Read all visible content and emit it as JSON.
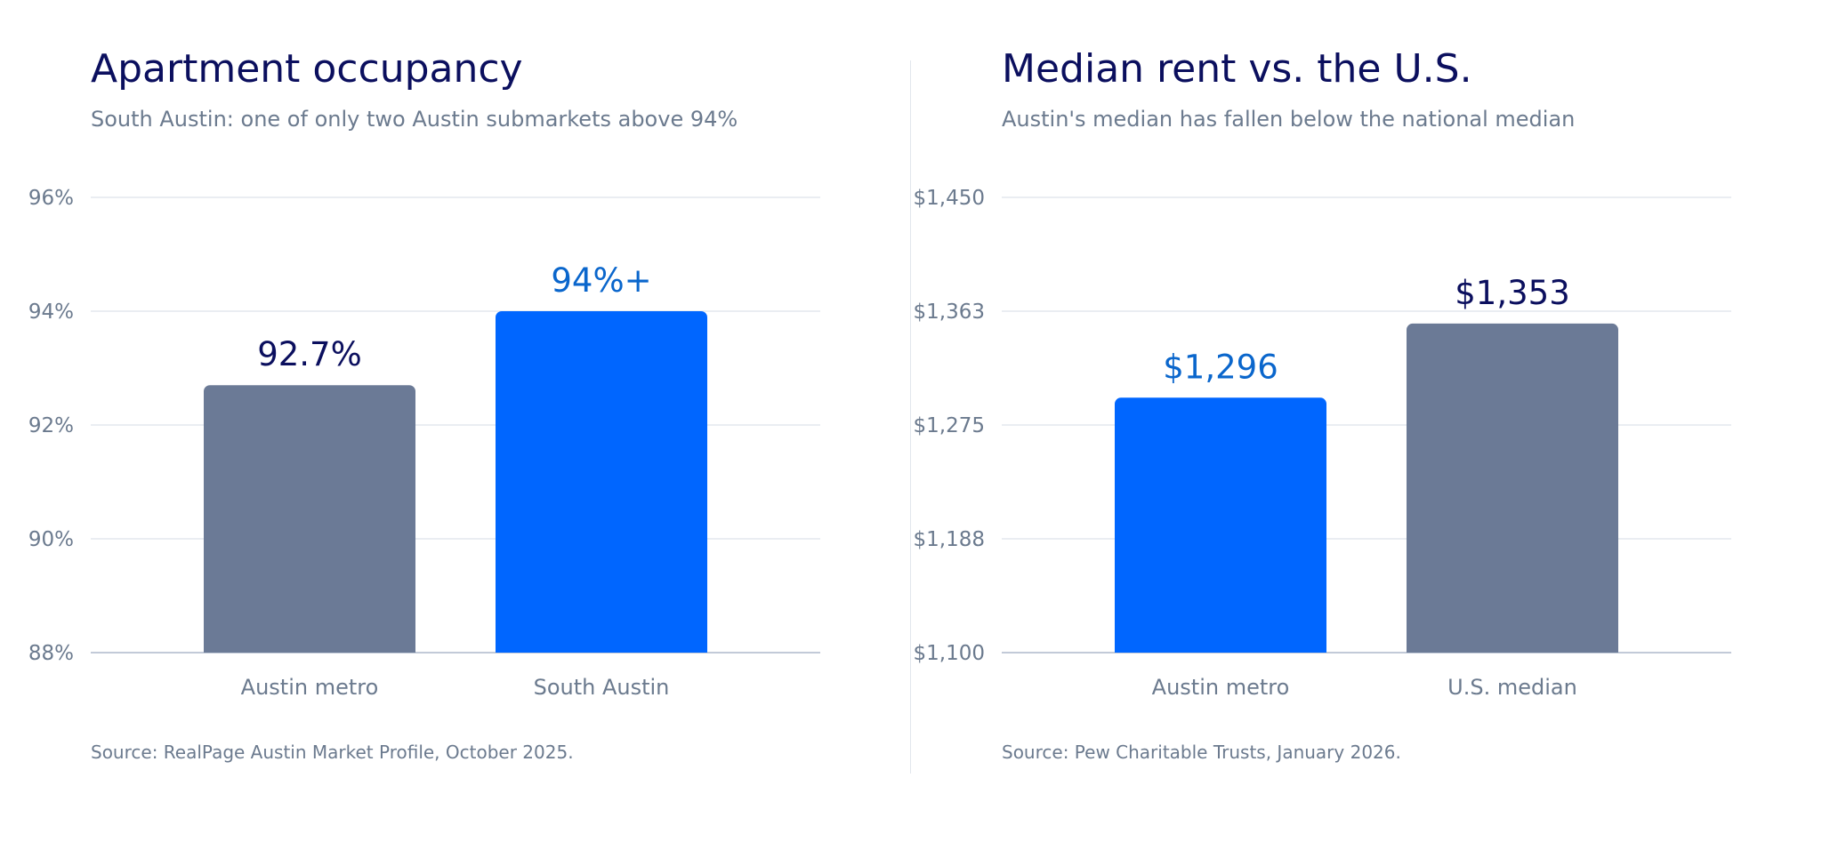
{
  "colors": {
    "title": "#0b0f5e",
    "muted": "#6b7a8e",
    "highlight": "#0066ff",
    "neutral": "#6b7a96",
    "highlight_label": "#0a66cc",
    "neutral_label": "#0b0f5e"
  },
  "chart_data": [
    {
      "type": "bar",
      "title": "Apartment occupancy",
      "subtitle": "South Austin: one of only two Austin submarkets above 94%",
      "source": "Source: RealPage Austin Market Profile, October 2025.",
      "categories": [
        "Austin metro",
        "South Austin"
      ],
      "values": [
        92.7,
        94.0
      ],
      "data_labels": [
        "92.7%",
        "94%+"
      ],
      "highlight": [
        false,
        true
      ],
      "ylim": [
        88,
        96
      ],
      "y_ticks": [
        88,
        90,
        92,
        94,
        96
      ],
      "y_tick_labels": [
        "88%",
        "90%",
        "92%",
        "94%",
        "96%"
      ],
      "grid": true,
      "xlabel": "",
      "ylabel": ""
    },
    {
      "type": "bar",
      "title": "Median rent vs. the U.S.",
      "subtitle": "Austin's median has fallen below the national median",
      "source": "Source: Pew Charitable Trusts, January 2026.",
      "categories": [
        "Austin metro",
        "U.S. median"
      ],
      "values": [
        1296,
        1353
      ],
      "data_labels": [
        "$1,296",
        "$1,353"
      ],
      "highlight": [
        true,
        false
      ],
      "ylim": [
        1100,
        1450
      ],
      "y_ticks": [
        1100,
        1187.5,
        1275,
        1362.5,
        1450
      ],
      "y_tick_labels": [
        "$1,100",
        "$1,188",
        "$1,275",
        "$1,363",
        "$1,450"
      ],
      "grid": true,
      "xlabel": "",
      "ylabel": ""
    }
  ]
}
